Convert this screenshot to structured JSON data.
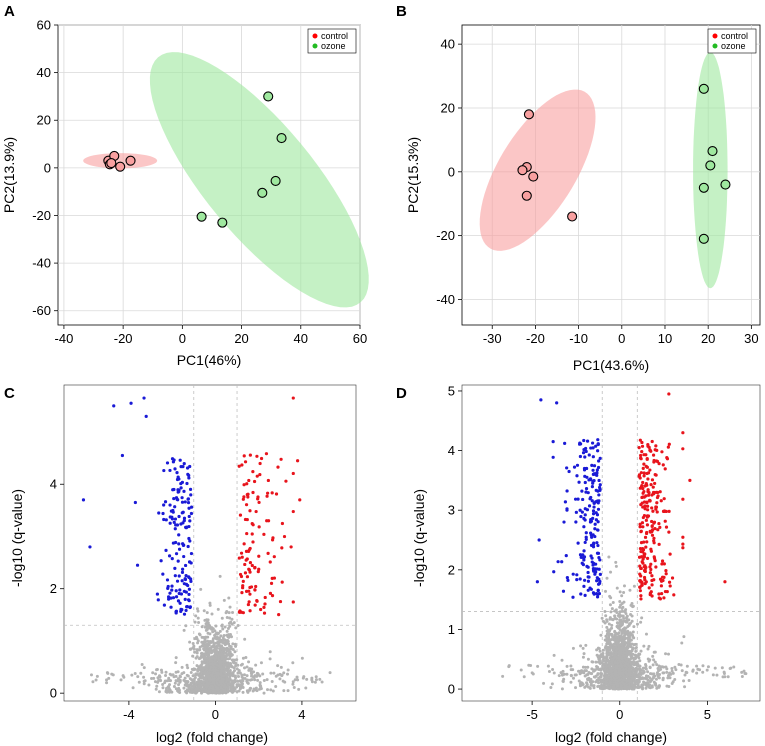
{
  "colors": {
    "control": "#ff0000",
    "control_ellipse": "#f8a0a0",
    "ozone": "#22bb22",
    "ozone_ellipse": "#9fe89f",
    "up": "#e8141c",
    "down": "#1a1ad6",
    "ns": "#b3b3b3"
  },
  "panels": {
    "A": {
      "letter": "A"
    },
    "B": {
      "letter": "B"
    },
    "C": {
      "letter": "C"
    },
    "D": {
      "letter": "D"
    }
  },
  "chart_data": [
    {
      "id": "A",
      "type": "scatter",
      "title": "",
      "xlabel": "PC1(46%)",
      "ylabel": "PC2(13.9%)",
      "xlim": [
        -42,
        60
      ],
      "ylim": [
        -66,
        60
      ],
      "xticks": [
        -40,
        -20,
        0,
        20,
        40,
        60
      ],
      "yticks": [
        -60,
        -40,
        -20,
        0,
        20,
        40,
        60
      ],
      "grid": true,
      "legend": {
        "position": "top-right",
        "entries": [
          "control",
          "ozone"
        ]
      },
      "series": [
        {
          "name": "control",
          "points": [
            [
              -25,
              3
            ],
            [
              -23,
              5
            ],
            [
              -24.5,
              1.5
            ],
            [
              -21,
              0.5
            ],
            [
              -17.5,
              3
            ],
            [
              -24,
              2
            ]
          ],
          "ellipse": {
            "cx": -21,
            "cy": 3,
            "rx": 12.5,
            "ry": 3.2,
            "angle_deg": 0
          }
        },
        {
          "name": "ozone",
          "points": [
            [
              29,
              30
            ],
            [
              33.5,
              12.5
            ],
            [
              31.5,
              -5.5
            ],
            [
              27,
              -10.5
            ],
            [
              6.5,
              -20.5
            ],
            [
              13.5,
              -23
            ]
          ],
          "ellipse": {
            "cx": 26,
            "cy": -5,
            "rx": 20,
            "ry": 62,
            "angle_deg": 32
          }
        }
      ]
    },
    {
      "id": "B",
      "type": "scatter",
      "title": "",
      "xlabel": "PC1(43.6%)",
      "ylabel": "PC2(15.3%)",
      "xlim": [
        -37,
        32
      ],
      "ylim": [
        -48,
        46
      ],
      "xticks": [
        -30,
        -20,
        -10,
        0,
        10,
        20,
        30
      ],
      "yticks": [
        -40,
        -20,
        0,
        20,
        40
      ],
      "grid": true,
      "legend": {
        "position": "top-right",
        "entries": [
          "control",
          "ozone"
        ]
      },
      "series": [
        {
          "name": "control",
          "points": [
            [
              -21.5,
              18
            ],
            [
              -22,
              1.5
            ],
            [
              -23,
              0.5
            ],
            [
              -20.5,
              -1.5
            ],
            [
              -22,
              -7.5
            ],
            [
              -11.5,
              -14
            ]
          ],
          "ellipse": {
            "cx": -19.5,
            "cy": 0.5,
            "rx": 9.5,
            "ry": 27,
            "angle_deg": -22
          }
        },
        {
          "name": "ozone",
          "points": [
            [
              19,
              26
            ],
            [
              21,
              6.5
            ],
            [
              20.5,
              2
            ],
            [
              24,
              -4
            ],
            [
              19,
              -5
            ],
            [
              19,
              -21
            ]
          ],
          "ellipse": {
            "cx": 20.5,
            "cy": 0.5,
            "rx": 4,
            "ry": 37,
            "angle_deg": 0
          }
        }
      ]
    },
    {
      "id": "C",
      "type": "scatter",
      "title": "",
      "xlabel": "log2 (fold change)",
      "ylabel": "-log10 (q-value)",
      "xlim": [
        -7,
        6.5
      ],
      "ylim": [
        -0.15,
        5.9
      ],
      "xticks": [
        -4,
        0,
        4
      ],
      "yticks": [
        0,
        2,
        4
      ],
      "grid": false,
      "thresholds": {
        "fc": [
          -1,
          1
        ],
        "q": 1.3
      },
      "counts": {
        "up": 120,
        "down": 160,
        "ns": 1600
      },
      "outliers": {
        "up": [
          [
            3.6,
            5.65
          ],
          [
            3.8,
            4.45
          ],
          [
            3.9,
            3.7
          ],
          [
            3.5,
            2.8
          ]
        ],
        "down": [
          [
            -3.3,
            5.65
          ],
          [
            -3.9,
            5.55
          ],
          [
            -4.7,
            5.5
          ],
          [
            -3.2,
            5.3
          ],
          [
            -4.3,
            4.55
          ],
          [
            -6.1,
            3.7
          ],
          [
            -5.8,
            2.8
          ],
          [
            -3.6,
            2.45
          ],
          [
            -3.7,
            3.65
          ]
        ]
      }
    },
    {
      "id": "D",
      "type": "scatter",
      "title": "",
      "xlabel": "log2 (fold change)",
      "ylabel": "-log10 (q-value)",
      "xlim": [
        -9,
        8
      ],
      "ylim": [
        -0.2,
        5.1
      ],
      "xticks": [
        -5,
        0,
        5
      ],
      "yticks": [
        0,
        1,
        2,
        3,
        4,
        5
      ],
      "grid": false,
      "thresholds": {
        "fc": [
          -1,
          1
        ],
        "q": 1.3
      },
      "counts": {
        "up": 240,
        "down": 200,
        "ns": 1800
      },
      "outliers": {
        "up": [
          [
            2.8,
            4.95
          ],
          [
            3.6,
            4.3
          ],
          [
            4.0,
            3.5
          ],
          [
            6.0,
            1.8
          ]
        ],
        "down": [
          [
            -4.5,
            4.85
          ],
          [
            -3.6,
            4.8
          ],
          [
            -4.6,
            2.5
          ],
          [
            -4.7,
            1.8
          ],
          [
            -3.8,
            4.15
          ]
        ]
      }
    }
  ]
}
